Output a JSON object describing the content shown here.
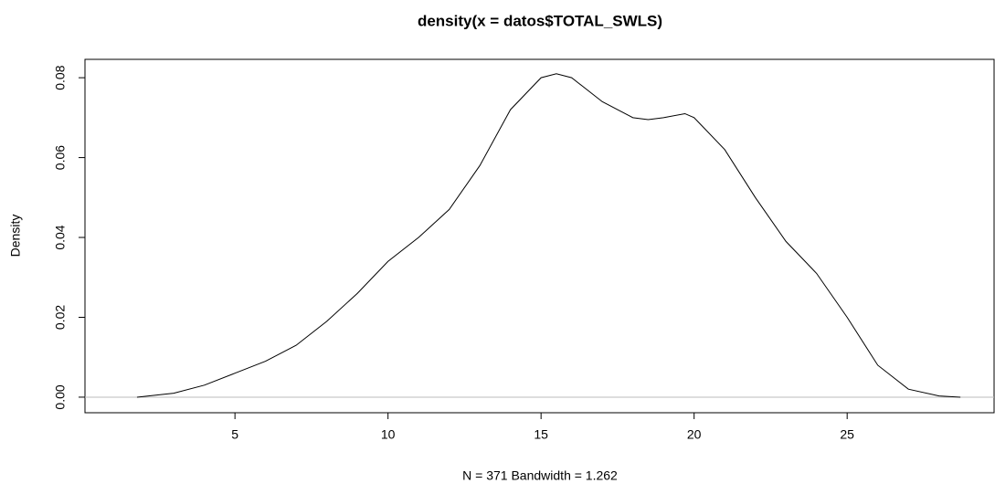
{
  "chart_data": {
    "type": "line",
    "title": "density(x = datos$TOTAL_SWLS)",
    "xlabel": "N = 371   Bandwidth = 1.262",
    "ylabel": "Density",
    "x": [
      1.8,
      3,
      4,
      5,
      6,
      7,
      8,
      9,
      10,
      11,
      12,
      13,
      14,
      15,
      15.5,
      16,
      17,
      18,
      18.5,
      19,
      19.7,
      20,
      21,
      22,
      23,
      24,
      25,
      26,
      27,
      28,
      28.7
    ],
    "y": [
      0,
      0.001,
      0.003,
      0.006,
      0.009,
      0.013,
      0.019,
      0.026,
      0.034,
      0.04,
      0.047,
      0.058,
      0.072,
      0.08,
      0.081,
      0.08,
      0.074,
      0.07,
      0.0695,
      0.07,
      0.071,
      0.07,
      0.062,
      0.05,
      0.039,
      0.031,
      0.02,
      0.008,
      0.002,
      0.0003,
      0
    ],
    "color": "#000000",
    "xlim": [
      0.1,
      29.8
    ],
    "ylim": [
      -0.0039,
      0.0846
    ],
    "xticks": [
      5,
      10,
      15,
      20,
      25
    ],
    "yticks": [
      {
        "value": 0,
        "label": "0.00"
      },
      0.02,
      0.04,
      0.06,
      0.08
    ]
  }
}
